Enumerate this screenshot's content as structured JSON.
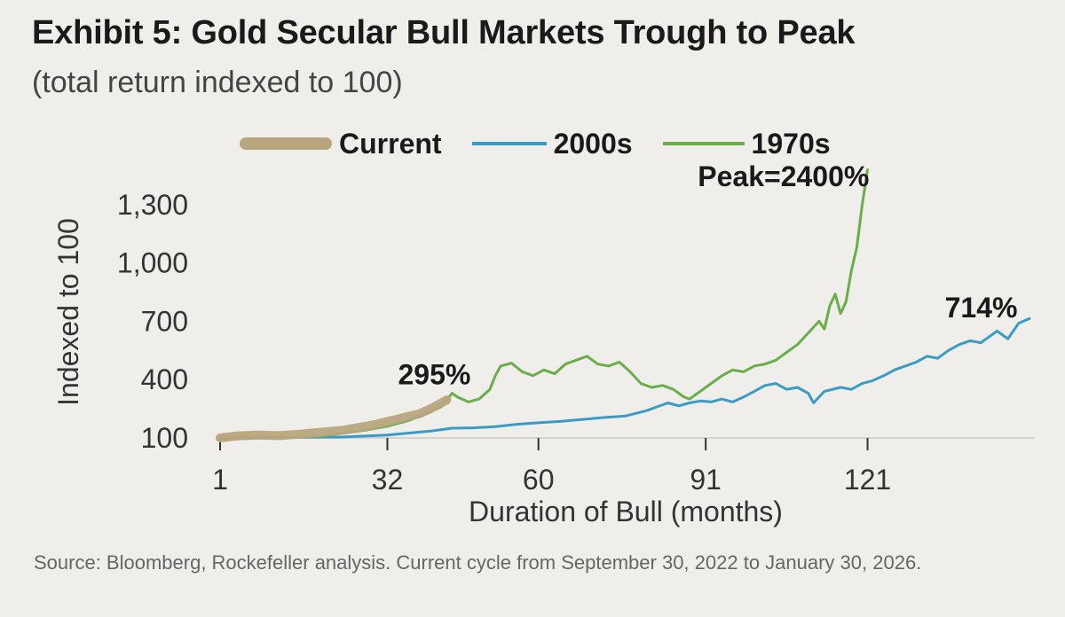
{
  "header": {
    "title": "Exhibit 5: Gold Secular Bull Markets Trough to Peak",
    "subtitle": "(total return indexed to 100)"
  },
  "footer": {
    "source": "Source: Bloomberg, Rockefeller analysis. Current cycle from September 30, 2022 to January 30, 2026."
  },
  "chart_data": {
    "type": "line",
    "xlabel": "Duration of Bull (months)",
    "ylabel": "Indexed to 100",
    "x_ticks": [
      1,
      32,
      60,
      91,
      121
    ],
    "y_ticks": [
      100,
      400,
      700,
      1000,
      1300
    ],
    "y_tick_labels": [
      "100",
      "400",
      "700",
      "1,000",
      "1,300"
    ],
    "xlim": [
      1,
      152
    ],
    "ylim": [
      0,
      1500
    ],
    "grid": false,
    "legend_position": "top",
    "annotations": [
      {
        "text": "295%",
        "x": 44,
        "y": 375
      },
      {
        "text": "Peak=2400%",
        "x": 112,
        "y": 1395
      },
      {
        "text": "714%",
        "x": 146,
        "y": 720
      }
    ],
    "series": [
      {
        "name": "Current",
        "color": "#b8a57e",
        "points": [
          [
            1,
            100
          ],
          [
            4,
            110
          ],
          [
            8,
            115
          ],
          [
            12,
            112
          ],
          [
            16,
            120
          ],
          [
            20,
            130
          ],
          [
            24,
            140
          ],
          [
            28,
            160
          ],
          [
            30,
            170
          ],
          [
            32,
            185
          ],
          [
            35,
            205
          ],
          [
            38,
            225
          ],
          [
            40,
            250
          ],
          [
            42,
            280
          ],
          [
            43,
            295
          ]
        ]
      },
      {
        "name": "2000s",
        "color": "#3a9cc4",
        "points": [
          [
            1,
            100
          ],
          [
            8,
            102
          ],
          [
            16,
            103
          ],
          [
            24,
            105
          ],
          [
            32,
            115
          ],
          [
            36,
            125
          ],
          [
            40,
            135
          ],
          [
            44,
            150
          ],
          [
            48,
            152
          ],
          [
            52,
            158
          ],
          [
            56,
            170
          ],
          [
            60,
            178
          ],
          [
            64,
            185
          ],
          [
            68,
            195
          ],
          [
            72,
            205
          ],
          [
            76,
            212
          ],
          [
            80,
            240
          ],
          [
            82,
            260
          ],
          [
            84,
            280
          ],
          [
            86,
            265
          ],
          [
            88,
            280
          ],
          [
            90,
            290
          ],
          [
            92,
            285
          ],
          [
            94,
            300
          ],
          [
            96,
            285
          ],
          [
            98,
            310
          ],
          [
            100,
            340
          ],
          [
            102,
            370
          ],
          [
            104,
            380
          ],
          [
            106,
            350
          ],
          [
            108,
            360
          ],
          [
            110,
            330
          ],
          [
            111,
            280
          ],
          [
            113,
            340
          ],
          [
            116,
            360
          ],
          [
            118,
            350
          ],
          [
            120,
            380
          ],
          [
            122,
            395
          ],
          [
            124,
            420
          ],
          [
            126,
            450
          ],
          [
            128,
            470
          ],
          [
            130,
            490
          ],
          [
            132,
            520
          ],
          [
            134,
            510
          ],
          [
            136,
            550
          ],
          [
            138,
            580
          ],
          [
            140,
            600
          ],
          [
            142,
            590
          ],
          [
            144,
            630
          ],
          [
            145,
            650
          ],
          [
            147,
            610
          ],
          [
            149,
            690
          ],
          [
            151,
            714
          ]
        ]
      },
      {
        "name": "1970s",
        "color": "#6aae4a",
        "points": [
          [
            1,
            100
          ],
          [
            4,
            95
          ],
          [
            8,
            100
          ],
          [
            12,
            98
          ],
          [
            16,
            105
          ],
          [
            20,
            110
          ],
          [
            24,
            125
          ],
          [
            28,
            140
          ],
          [
            32,
            160
          ],
          [
            36,
            190
          ],
          [
            40,
            235
          ],
          [
            42,
            260
          ],
          [
            44,
            330
          ],
          [
            45,
            310
          ],
          [
            47,
            285
          ],
          [
            49,
            300
          ],
          [
            51,
            350
          ],
          [
            52,
            420
          ],
          [
            53,
            470
          ],
          [
            55,
            485
          ],
          [
            57,
            440
          ],
          [
            59,
            420
          ],
          [
            61,
            450
          ],
          [
            63,
            430
          ],
          [
            65,
            480
          ],
          [
            67,
            500
          ],
          [
            69,
            520
          ],
          [
            71,
            480
          ],
          [
            73,
            470
          ],
          [
            75,
            490
          ],
          [
            77,
            440
          ],
          [
            79,
            380
          ],
          [
            81,
            360
          ],
          [
            83,
            370
          ],
          [
            85,
            350
          ],
          [
            87,
            310
          ],
          [
            88,
            300
          ],
          [
            90,
            340
          ],
          [
            92,
            380
          ],
          [
            94,
            420
          ],
          [
            96,
            450
          ],
          [
            98,
            440
          ],
          [
            100,
            470
          ],
          [
            102,
            480
          ],
          [
            104,
            500
          ],
          [
            106,
            540
          ],
          [
            108,
            580
          ],
          [
            110,
            640
          ],
          [
            112,
            700
          ],
          [
            113,
            660
          ],
          [
            114,
            780
          ],
          [
            115,
            840
          ],
          [
            116,
            740
          ],
          [
            117,
            800
          ],
          [
            118,
            960
          ],
          [
            119,
            1080
          ],
          [
            120,
            1300
          ],
          [
            121,
            1480
          ]
        ]
      }
    ]
  }
}
